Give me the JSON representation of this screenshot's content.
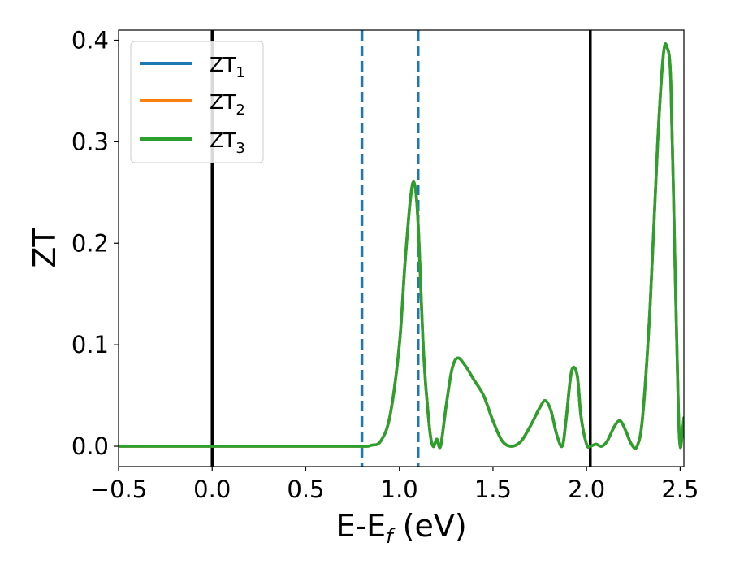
{
  "chart_data": {
    "type": "line",
    "xlabel": "E-E",
    "xlabel_subscript": "f",
    "xlabel_unit": "(eV)",
    "ylabel": "ZT",
    "xlim": [
      -0.5,
      2.52
    ],
    "ylim": [
      -0.02,
      0.41
    ],
    "x_ticks": [
      -0.5,
      0.0,
      0.5,
      1.0,
      1.5,
      2.0,
      2.5
    ],
    "x_tick_labels": [
      "−0.5",
      "0.0",
      "0.5",
      "1.0",
      "1.5",
      "2.0",
      "2.5"
    ],
    "y_ticks": [
      0.0,
      0.1,
      0.2,
      0.3,
      0.4
    ],
    "y_tick_labels": [
      "0.0",
      "0.1",
      "0.2",
      "0.3",
      "0.4"
    ],
    "grid": false,
    "legend_position": "upper-left",
    "colors": {
      "ZT1": "#1f77b4",
      "ZT2": "#ff7f0e",
      "ZT3": "#2ca02c",
      "solid_vline": "#000000",
      "dashed_vline": "#1f77b4"
    },
    "vertical_lines": [
      {
        "x": 0.0,
        "style": "solid",
        "color": "#000000"
      },
      {
        "x": 2.02,
        "style": "solid",
        "color": "#000000"
      },
      {
        "x": 0.8,
        "style": "dashed",
        "color": "#1f77b4"
      },
      {
        "x": 1.1,
        "style": "dashed",
        "color": "#1f77b4"
      }
    ],
    "series": [
      {
        "name": "ZT",
        "sub": "1",
        "color": "#1f77b4",
        "curve": "shared"
      },
      {
        "name": "ZT",
        "sub": "2",
        "color": "#ff7f0e",
        "curve": "shared"
      },
      {
        "name": "ZT",
        "sub": "3",
        "color": "#2ca02c",
        "curve": "shared"
      }
    ],
    "shared_curve": {
      "x": [
        -0.5,
        0.0,
        0.5,
        0.8,
        0.85,
        0.9,
        0.95,
        1.0,
        1.03,
        1.06,
        1.08,
        1.1,
        1.13,
        1.16,
        1.18,
        1.2,
        1.22,
        1.25,
        1.28,
        1.31,
        1.35,
        1.4,
        1.45,
        1.5,
        1.55,
        1.6,
        1.65,
        1.7,
        1.75,
        1.78,
        1.81,
        1.84,
        1.87,
        1.89,
        1.92,
        1.95,
        1.97,
        2.0,
        2.02,
        2.05,
        2.08,
        2.11,
        2.15,
        2.18,
        2.21,
        2.24,
        2.27,
        2.3,
        2.34,
        2.38,
        2.41,
        2.43,
        2.45,
        2.47,
        2.49,
        2.5,
        2.51,
        2.52
      ],
      "y": [
        0.0,
        0.0,
        0.0,
        0.0,
        0.001,
        0.005,
        0.03,
        0.1,
        0.18,
        0.245,
        0.259,
        0.22,
        0.09,
        0.02,
        0.0,
        0.007,
        0.0,
        0.04,
        0.075,
        0.087,
        0.08,
        0.065,
        0.05,
        0.025,
        0.005,
        0.0,
        0.005,
        0.02,
        0.038,
        0.045,
        0.035,
        0.012,
        0.0,
        0.025,
        0.074,
        0.07,
        0.03,
        0.002,
        0.0,
        0.002,
        0.0,
        0.005,
        0.02,
        0.025,
        0.015,
        0.002,
        0.0,
        0.03,
        0.14,
        0.3,
        0.385,
        0.393,
        0.36,
        0.2,
        0.04,
        0.0,
        0.01,
        0.028
      ]
    }
  }
}
